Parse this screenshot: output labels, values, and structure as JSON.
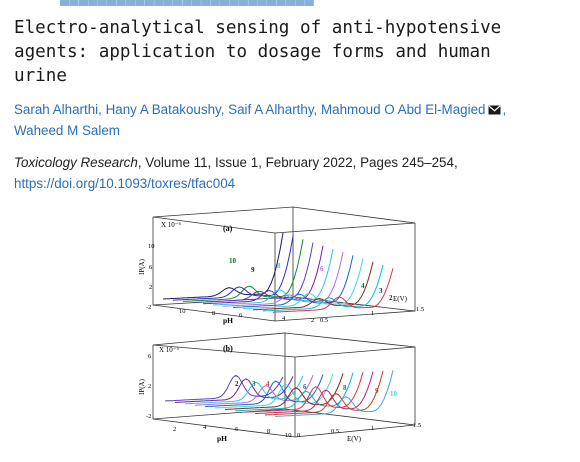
{
  "article": {
    "title_lines": [
      "Electro-analytical sensing of anti-hypotensive",
      "agents: application to dosage forms and human",
      "urine"
    ],
    "authors": [
      {
        "name": "Sarah Alharthi"
      },
      {
        "name": "Hany A Batakoushy"
      },
      {
        "name": "Saif A Alharthy"
      },
      {
        "name": "Mahmoud O Abd El-Magied",
        "corresponding": true
      },
      {
        "name": "Waheed M Salem"
      }
    ],
    "author_separator": ", ",
    "mail_icon": "envelope-icon",
    "journal": "Toxicology Research",
    "citation_rest": ", Volume 11, Issue 1, February 2022, Pages 245–254,",
    "doi": "https://doi.org/10.1093/toxres/tfac004"
  },
  "figure": {
    "panel_a": {
      "label": "(a)",
      "exponent": "X 10⁻⁶",
      "ylabel": "IP(A)",
      "xlabel_ph": "pH",
      "xlabel_e": "E(V)",
      "y_ticks": [
        "10",
        "6",
        "2",
        "-2"
      ],
      "ph_ticks": [
        "10",
        "8",
        "6",
        "4",
        "2"
      ],
      "e_ticks": [
        "0.5",
        "1",
        "1.5"
      ],
      "curve_labels": [
        "10",
        "9",
        "8",
        "6",
        "4",
        "3",
        "2"
      ]
    },
    "panel_b": {
      "label": "(b)",
      "exponent": "X 10⁻⁵",
      "ylabel": "IP(A)",
      "xlabel_ph": "pH",
      "xlabel_e": "E(V)",
      "y_ticks": [
        "6",
        "2",
        "-2"
      ],
      "ph_ticks": [
        "2",
        "4",
        "6",
        "8",
        "10"
      ],
      "e_ticks": [
        "0",
        "0.5",
        "1",
        "1.5"
      ],
      "curve_labels": [
        "2",
        "3",
        "4",
        "6",
        "8",
        "9",
        "10"
      ]
    },
    "colors": [
      "#1a1a60",
      "#2b2bd6",
      "#0f8a2a",
      "#5a3fc0",
      "#6b1fa8",
      "#2ec4e8",
      "#b46bd8",
      "#1565c0",
      "#3fd8d0",
      "#8b2020",
      "#00bcd4",
      "#e0323c",
      "#b4287a",
      "#c04020",
      "#4aa0e0"
    ]
  }
}
